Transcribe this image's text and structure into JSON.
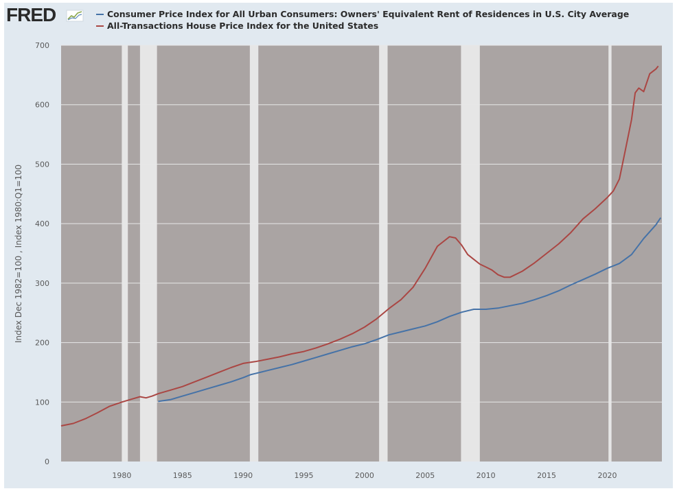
{
  "brand": {
    "logo_text": "FRED",
    "logo_icon": "fred-chart-icon"
  },
  "colors": {
    "frame_bg": "#e1e9f0",
    "plot_bg": "#aaa4a3",
    "recession_band": "#e6e6e6",
    "gridline": "#e8e8e8",
    "series_oer": "#4572a7",
    "series_hpi": "#aa4643"
  },
  "chart_data": {
    "type": "line",
    "title": "",
    "xlabel": "",
    "ylabel": "Index Dec 1982=100 , Index 1980:Q1=100",
    "xlim": [
      1975.0,
      2024.5
    ],
    "ylim": [
      0,
      700
    ],
    "y_ticks": [
      "0",
      "100",
      "200",
      "300",
      "400",
      "500",
      "600",
      "700"
    ],
    "x_ticks": [
      "1980",
      "1985",
      "1990",
      "1995",
      "2000",
      "2005",
      "2010",
      "2015",
      "2020"
    ],
    "grid": true,
    "legend_position": "top",
    "recessions": [
      [
        1980.0,
        1980.5
      ],
      [
        1981.5,
        1982.9
      ],
      [
        1990.55,
        1991.25
      ],
      [
        2001.2,
        2001.9
      ],
      [
        2007.95,
        2009.5
      ],
      [
        2020.1,
        2020.35
      ]
    ],
    "series": [
      {
        "name": "Consumer Price Index for All Urban Consumers: Owners' Equivalent Rent of Residences in U.S. City Average",
        "color": "#4572a7",
        "points": [
          [
            1983.0,
            101
          ],
          [
            1984.0,
            104
          ],
          [
            1985.0,
            110
          ],
          [
            1986.0,
            116
          ],
          [
            1987.0,
            122
          ],
          [
            1988.0,
            128
          ],
          [
            1989.0,
            134
          ],
          [
            1990.0,
            141
          ],
          [
            1990.6,
            146
          ],
          [
            1991.0,
            148
          ],
          [
            1992.0,
            153
          ],
          [
            1993.0,
            158
          ],
          [
            1994.0,
            163
          ],
          [
            1995.0,
            169
          ],
          [
            1996.0,
            175
          ],
          [
            1997.0,
            181
          ],
          [
            1998.0,
            187
          ],
          [
            1999.0,
            193
          ],
          [
            2000.0,
            198
          ],
          [
            2001.0,
            205
          ],
          [
            2002.0,
            213
          ],
          [
            2003.0,
            218
          ],
          [
            2004.0,
            223
          ],
          [
            2005.0,
            228
          ],
          [
            2006.0,
            235
          ],
          [
            2007.0,
            244
          ],
          [
            2008.0,
            251
          ],
          [
            2009.0,
            256
          ],
          [
            2010.0,
            256
          ],
          [
            2011.0,
            258
          ],
          [
            2012.0,
            262
          ],
          [
            2013.0,
            266
          ],
          [
            2014.0,
            272
          ],
          [
            2015.0,
            279
          ],
          [
            2016.0,
            287
          ],
          [
            2017.0,
            297
          ],
          [
            2018.0,
            306
          ],
          [
            2019.0,
            315
          ],
          [
            2020.0,
            325
          ],
          [
            2021.0,
            333
          ],
          [
            2022.0,
            348
          ],
          [
            2023.0,
            375
          ],
          [
            2024.0,
            398
          ],
          [
            2024.4,
            410
          ]
        ]
      },
      {
        "name": "All-Transactions House Price Index for the United States",
        "color": "#aa4643",
        "points": [
          [
            1975.0,
            60
          ],
          [
            1976.0,
            64
          ],
          [
            1977.0,
            72
          ],
          [
            1978.0,
            82
          ],
          [
            1979.0,
            93
          ],
          [
            1980.0,
            100
          ],
          [
            1981.0,
            106
          ],
          [
            1981.5,
            109
          ],
          [
            1982.0,
            107
          ],
          [
            1982.5,
            110
          ],
          [
            1983.0,
            114
          ],
          [
            1984.0,
            120
          ],
          [
            1985.0,
            126
          ],
          [
            1986.0,
            134
          ],
          [
            1987.0,
            142
          ],
          [
            1988.0,
            150
          ],
          [
            1989.0,
            158
          ],
          [
            1990.0,
            165
          ],
          [
            1991.0,
            168
          ],
          [
            1992.0,
            172
          ],
          [
            1993.0,
            176
          ],
          [
            1994.0,
            181
          ],
          [
            1995.0,
            185
          ],
          [
            1996.0,
            191
          ],
          [
            1997.0,
            198
          ],
          [
            1998.0,
            206
          ],
          [
            1999.0,
            215
          ],
          [
            2000.0,
            226
          ],
          [
            2001.0,
            240
          ],
          [
            2002.0,
            257
          ],
          [
            2003.0,
            272
          ],
          [
            2004.0,
            293
          ],
          [
            2005.0,
            325
          ],
          [
            2006.0,
            362
          ],
          [
            2007.0,
            378
          ],
          [
            2007.5,
            376
          ],
          [
            2008.0,
            364
          ],
          [
            2008.5,
            348
          ],
          [
            2009.0,
            340
          ],
          [
            2009.5,
            332
          ],
          [
            2010.0,
            327
          ],
          [
            2010.5,
            322
          ],
          [
            2011.0,
            314
          ],
          [
            2011.5,
            310
          ],
          [
            2012.0,
            310
          ],
          [
            2013.0,
            320
          ],
          [
            2014.0,
            334
          ],
          [
            2015.0,
            350
          ],
          [
            2016.0,
            366
          ],
          [
            2017.0,
            385
          ],
          [
            2018.0,
            408
          ],
          [
            2019.0,
            425
          ],
          [
            2020.0,
            444
          ],
          [
            2020.5,
            455
          ],
          [
            2021.0,
            475
          ],
          [
            2021.5,
            525
          ],
          [
            2022.0,
            575
          ],
          [
            2022.3,
            620
          ],
          [
            2022.6,
            628
          ],
          [
            2023.0,
            622
          ],
          [
            2023.5,
            652
          ],
          [
            2024.0,
            660
          ],
          [
            2024.2,
            665
          ]
        ]
      }
    ]
  }
}
